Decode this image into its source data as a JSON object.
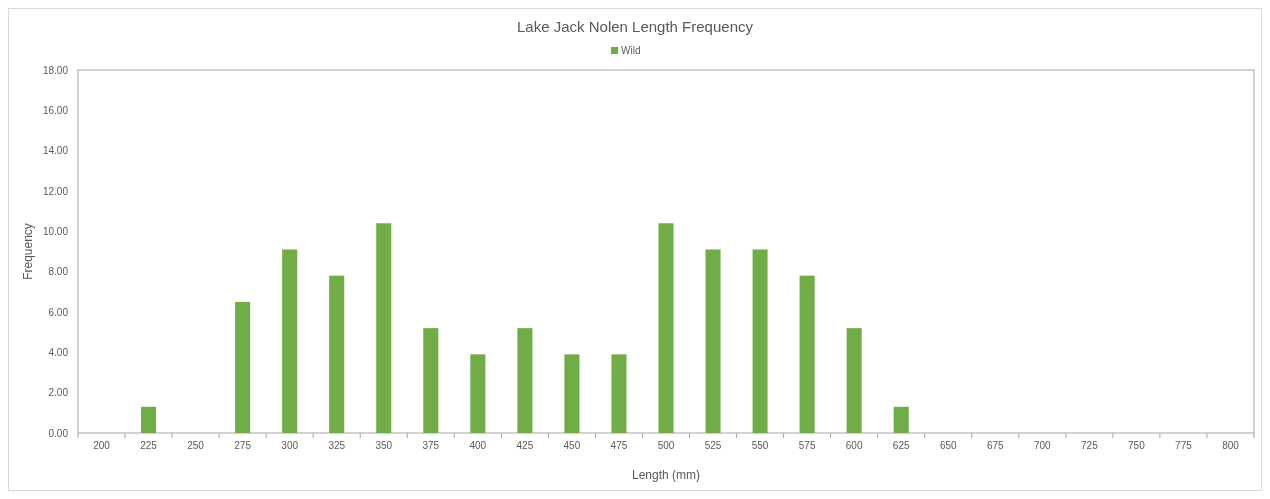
{
  "chart_data": {
    "type": "bar",
    "title": "Lake Jack Nolen Length Frequency",
    "xlabel": "Length (mm)",
    "ylabel": "Frequency",
    "categories": [
      "200",
      "225",
      "250",
      "275",
      "300",
      "325",
      "350",
      "375",
      "400",
      "425",
      "450",
      "475",
      "500",
      "525",
      "550",
      "575",
      "600",
      "625",
      "650",
      "675",
      "700",
      "725",
      "750",
      "775",
      "800"
    ],
    "series": [
      {
        "name": "Wild",
        "color": "#70ad47",
        "values": [
          0,
          1.3,
          0,
          6.5,
          9.1,
          7.8,
          10.4,
          5.2,
          3.9,
          5.2,
          3.9,
          3.9,
          10.4,
          9.1,
          9.1,
          7.8,
          5.2,
          1.3,
          0,
          0,
          0,
          0,
          0,
          0,
          0
        ]
      }
    ],
    "ylim": [
      0,
      18
    ],
    "yticks": [
      {
        "value": 0,
        "label": "0.00"
      },
      {
        "value": 2,
        "label": "2.00"
      },
      {
        "value": 4,
        "label": "4.00"
      },
      {
        "value": 6,
        "label": "6.00"
      },
      {
        "value": 8,
        "label": "8.00"
      },
      {
        "value": 10,
        "label": "10.00"
      },
      {
        "value": 12,
        "label": "12.00"
      },
      {
        "value": 14,
        "label": "14.00"
      },
      {
        "value": 16,
        "label": "16.00"
      },
      {
        "value": 18,
        "label": "18.00"
      }
    ],
    "grid": false,
    "legend": "top"
  }
}
